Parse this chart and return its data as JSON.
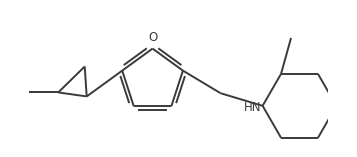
{
  "bg_color": "#ffffff",
  "line_color": "#3a3a3a",
  "line_width": 1.4,
  "text_color": "#3a3a3a",
  "font_size": 8.5,
  "O_label": "O",
  "NH_label": "HN"
}
